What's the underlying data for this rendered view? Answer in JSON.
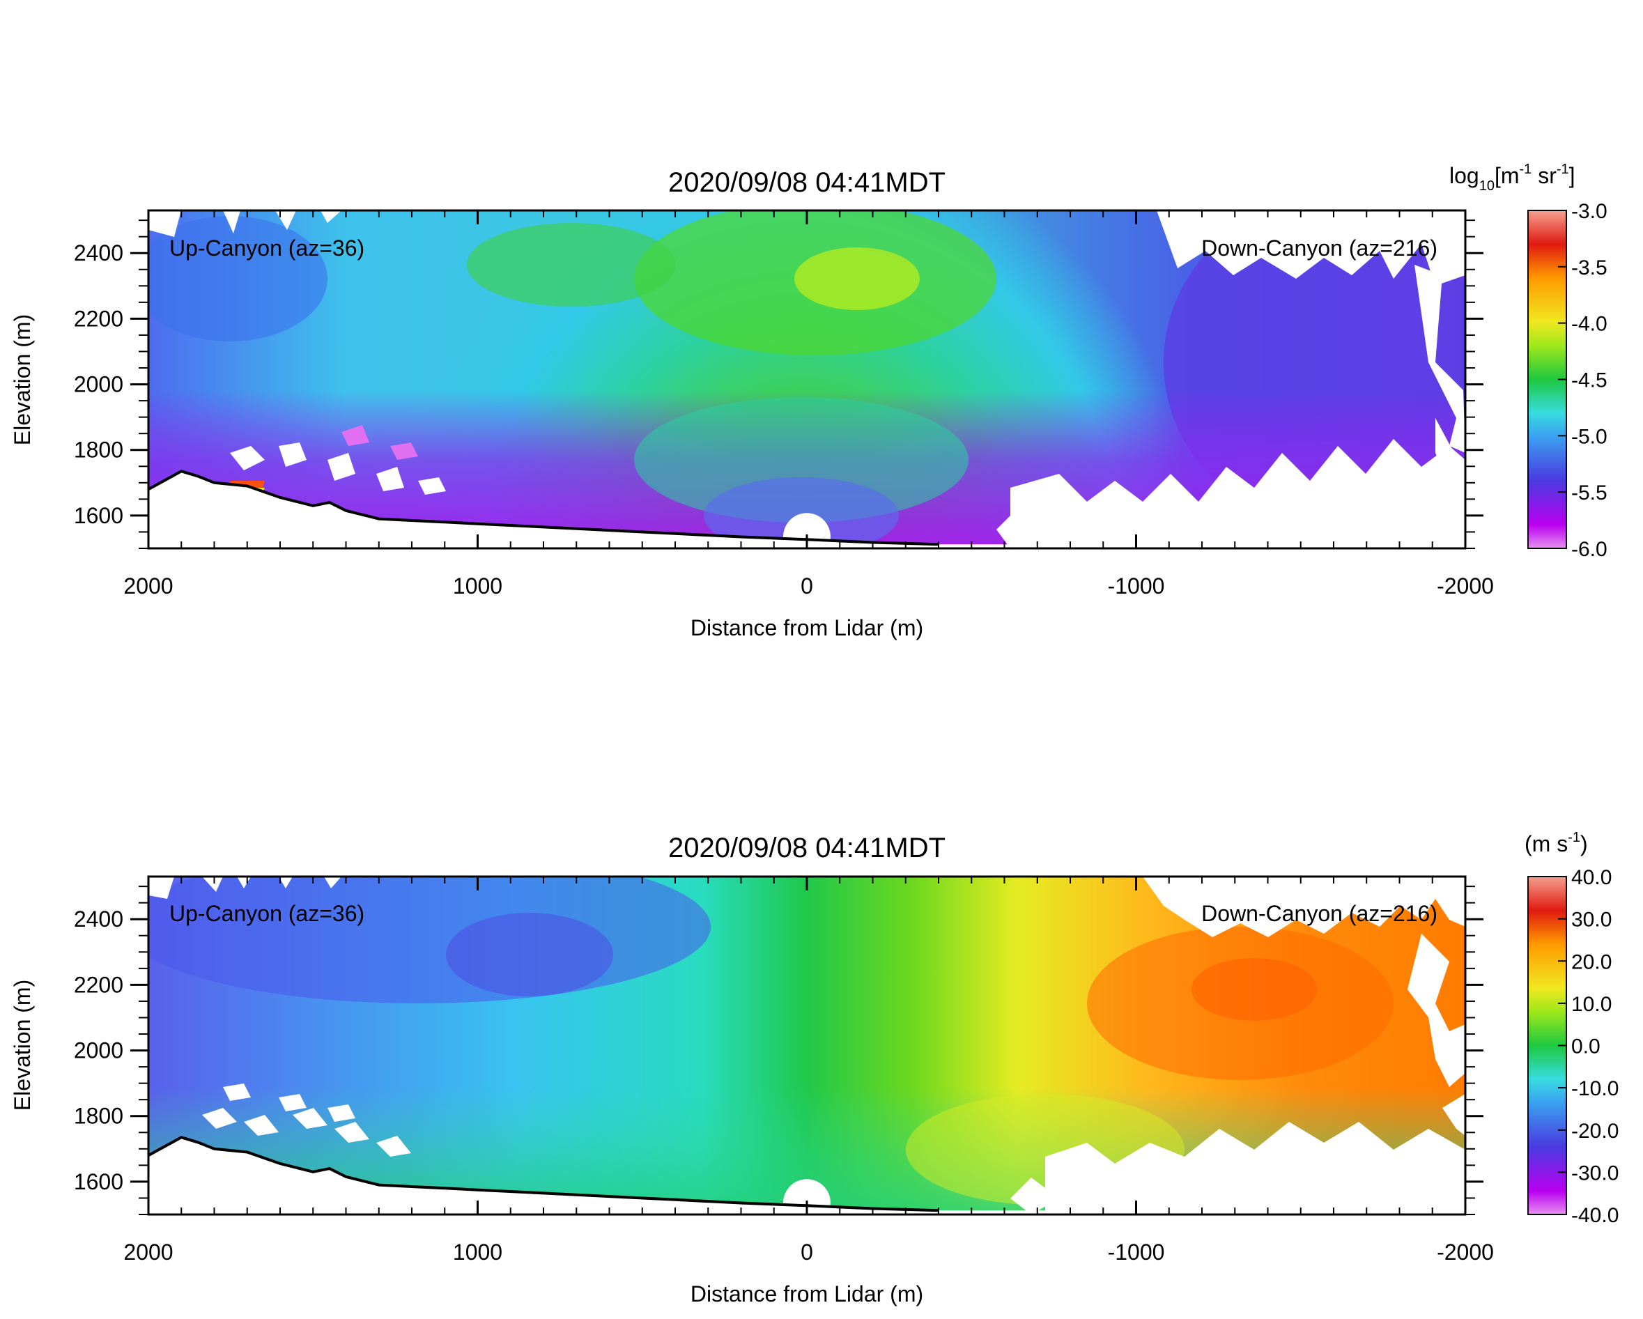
{
  "chart_data": [
    {
      "type": "heatmap",
      "title": "2020/09/08 04:41MDT",
      "xlabel": "Distance from Lidar (m)",
      "ylabel": "Elevation (m)",
      "xlim": [
        2000,
        -2000
      ],
      "ylim": [
        1500,
        2530
      ],
      "x_ticks": [
        2000,
        1000,
        0,
        -1000,
        -2000
      ],
      "y_ticks": [
        1600,
        1800,
        2000,
        2200,
        2400
      ],
      "annotations": {
        "left": "Up-Canyon (az=36)",
        "right": "Down-Canyon (az=216)"
      },
      "colorbar": {
        "unit_base": "log",
        "unit_sub": "10",
        "unit_rest": "[m",
        "unit_sup1": "-1",
        "unit_mid": " sr",
        "unit_sup2": "-1",
        "unit_end": "]",
        "range": [
          -6.0,
          -3.0
        ],
        "ticks": [
          "-3.0",
          "-3.5",
          "-4.0",
          "-4.5",
          "-5.0",
          "-5.5",
          "-6.0"
        ],
        "tick_values": [
          -3.0,
          -3.5,
          -4.0,
          -4.5,
          -5.0,
          -5.5,
          -6.0
        ]
      },
      "colors": {
        "field": [
          "#b800f0",
          "#4040e0",
          "#38d0e8",
          "#1ed4b0",
          "#2bc82b",
          "#9ee81a",
          "#f0e820",
          "#ff9a00",
          "#e01010",
          "#f4a090"
        ]
      },
      "terrain": {
        "x": [
          2000,
          1900,
          1850,
          1800,
          1700,
          1600,
          1500,
          1450,
          1400,
          1300,
          1200,
          1100,
          1000,
          800,
          600,
          400,
          200,
          0,
          -200,
          -400
        ],
        "y": [
          1680,
          1735,
          1720,
          1700,
          1690,
          1655,
          1630,
          1640,
          1615,
          1590,
          1585,
          1580,
          1575,
          1565,
          1555,
          1545,
          1535,
          1527,
          1518,
          1512
        ]
      }
    },
    {
      "type": "heatmap",
      "title": "2020/09/08 04:41MDT",
      "xlabel": "Distance from Lidar (m)",
      "ylabel": "Elevation (m)",
      "xlim": [
        2000,
        -2000
      ],
      "ylim": [
        1500,
        2530
      ],
      "x_ticks": [
        2000,
        1000,
        0,
        -1000,
        -2000
      ],
      "y_ticks": [
        1600,
        1800,
        2000,
        2200,
        2400
      ],
      "annotations": {
        "left": "Up-Canyon (az=36)",
        "right": "Down-Canyon (az=216)"
      },
      "colorbar": {
        "unit_base": "(m s",
        "unit_sup1": "-1",
        "unit_end": ")",
        "range": [
          -40.0,
          40.0
        ],
        "ticks": [
          "40.0",
          "30.0",
          "20.0",
          "10.0",
          "0.0",
          "-10.0",
          "-20.0",
          "-30.0",
          "-40.0"
        ],
        "tick_values": [
          40,
          30,
          20,
          10,
          0,
          -10,
          -20,
          -30,
          -40
        ]
      },
      "colors": {
        "field": [
          "#b800f0",
          "#4040e0",
          "#38d0e8",
          "#1ed4b0",
          "#2bc82b",
          "#9ee81a",
          "#f0e820",
          "#ff9a00",
          "#e01010",
          "#f4a090"
        ]
      },
      "terrain": {
        "x": [
          2000,
          1900,
          1850,
          1800,
          1700,
          1600,
          1500,
          1450,
          1400,
          1300,
          1200,
          1100,
          1000,
          800,
          600,
          400,
          200,
          0,
          -200,
          -400
        ],
        "y": [
          1680,
          1735,
          1720,
          1700,
          1690,
          1655,
          1630,
          1640,
          1615,
          1590,
          1585,
          1580,
          1575,
          1565,
          1555,
          1545,
          1535,
          1527,
          1518,
          1512
        ]
      }
    }
  ]
}
